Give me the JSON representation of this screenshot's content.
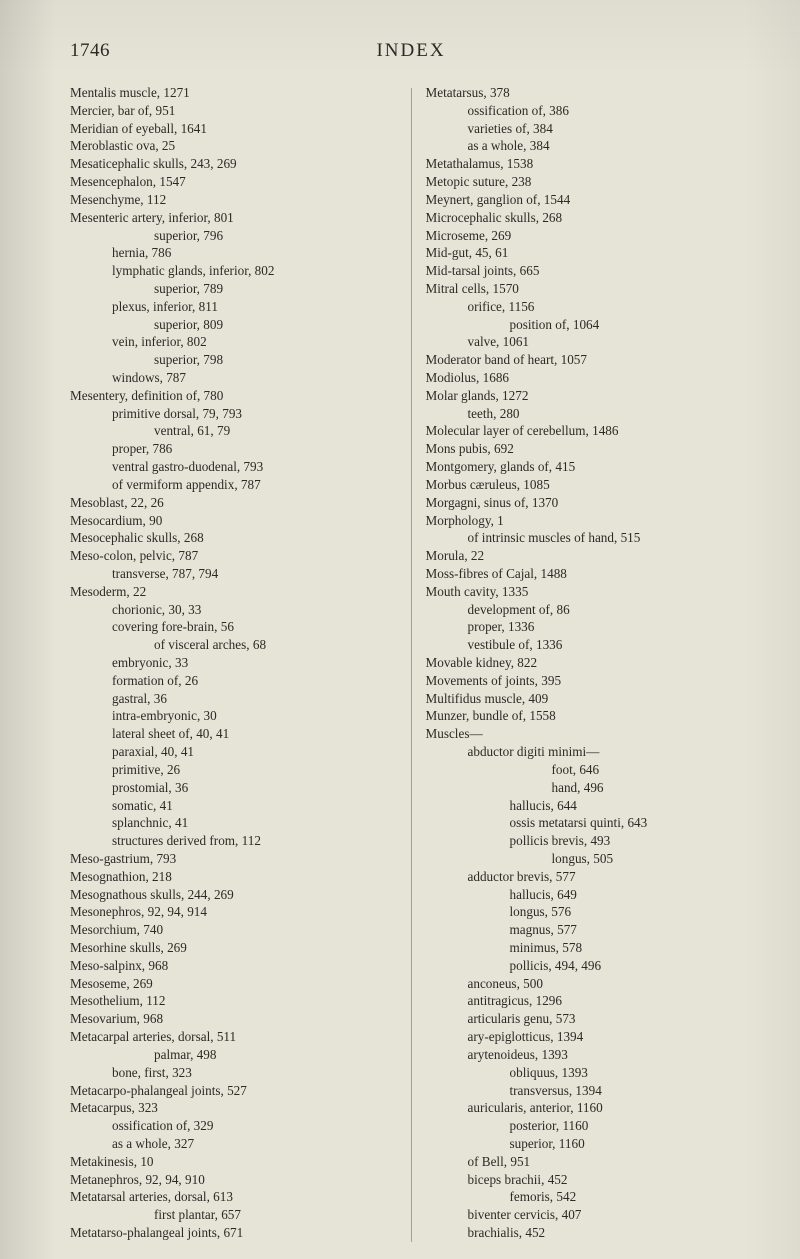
{
  "header": {
    "page_number": "1746",
    "title": "INDEX"
  },
  "columns": {
    "left": [
      {
        "t": "Mentalis muscle, 1271",
        "i": 0
      },
      {
        "t": "Mercier, bar of, 951",
        "i": 0
      },
      {
        "t": "Meridian of eyeball, 1641",
        "i": 0
      },
      {
        "t": "Meroblastic ova, 25",
        "i": 0
      },
      {
        "t": "Mesaticephalic skulls, 243, 269",
        "i": 0
      },
      {
        "t": "Mesencephalon, 1547",
        "i": 0
      },
      {
        "t": "Mesenchyme, 112",
        "i": 0
      },
      {
        "t": "Mesenteric artery, inferior, 801",
        "i": 0
      },
      {
        "t": "superior, 796",
        "i": 2
      },
      {
        "t": "hernia, 786",
        "i": 1
      },
      {
        "t": "lymphatic glands, inferior, 802",
        "i": 1
      },
      {
        "t": "superior, 789",
        "i": 2
      },
      {
        "t": "plexus, inferior, 811",
        "i": 1
      },
      {
        "t": "superior, 809",
        "i": 2
      },
      {
        "t": "vein, inferior, 802",
        "i": 1
      },
      {
        "t": "superior, 798",
        "i": 2
      },
      {
        "t": "windows, 787",
        "i": 1
      },
      {
        "t": "Mesentery, definition of, 780",
        "i": 0
      },
      {
        "t": "primitive dorsal, 79, 793",
        "i": 1
      },
      {
        "t": "ventral, 61, 79",
        "i": 2
      },
      {
        "t": "proper, 786",
        "i": 1
      },
      {
        "t": "ventral gastro-duodenal, 793",
        "i": 1
      },
      {
        "t": "of vermiform appendix, 787",
        "i": 1
      },
      {
        "t": "Mesoblast, 22, 26",
        "i": 0
      },
      {
        "t": "Mesocardium, 90",
        "i": 0
      },
      {
        "t": "Mesocephalic skulls, 268",
        "i": 0
      },
      {
        "t": "Meso-colon, pelvic, 787",
        "i": 0
      },
      {
        "t": "transverse, 787, 794",
        "i": 1
      },
      {
        "t": "Mesoderm, 22",
        "i": 0
      },
      {
        "t": "chorionic, 30, 33",
        "i": 1
      },
      {
        "t": "covering fore-brain, 56",
        "i": 1
      },
      {
        "t": "of visceral arches, 68",
        "i": 2
      },
      {
        "t": "embryonic, 33",
        "i": 1
      },
      {
        "t": "formation of, 26",
        "i": 1
      },
      {
        "t": "gastral, 36",
        "i": 1
      },
      {
        "t": "intra-embryonic, 30",
        "i": 1
      },
      {
        "t": "lateral sheet of, 40, 41",
        "i": 1
      },
      {
        "t": "paraxial, 40, 41",
        "i": 1
      },
      {
        "t": "primitive, 26",
        "i": 1
      },
      {
        "t": "prostomial, 36",
        "i": 1
      },
      {
        "t": "somatic, 41",
        "i": 1
      },
      {
        "t": "splanchnic, 41",
        "i": 1
      },
      {
        "t": "structures derived from, 112",
        "i": 1
      },
      {
        "t": "Meso-gastrium, 793",
        "i": 0
      },
      {
        "t": "Mesognathion, 218",
        "i": 0
      },
      {
        "t": "Mesognathous skulls, 244, 269",
        "i": 0
      },
      {
        "t": "Mesonephros, 92, 94, 914",
        "i": 0
      },
      {
        "t": "Mesorchium, 740",
        "i": 0
      },
      {
        "t": "Mesorhine skulls, 269",
        "i": 0
      },
      {
        "t": "Meso-salpinx, 968",
        "i": 0
      },
      {
        "t": "Mesoseme, 269",
        "i": 0
      },
      {
        "t": "Mesothelium, 112",
        "i": 0
      },
      {
        "t": "Mesovarium, 968",
        "i": 0
      },
      {
        "t": "Metacarpal arteries, dorsal, 511",
        "i": 0
      },
      {
        "t": "palmar, 498",
        "i": 2
      },
      {
        "t": "bone, first, 323",
        "i": 1
      },
      {
        "t": "Metacarpo-phalangeal joints, 527",
        "i": 0
      },
      {
        "t": "Metacarpus, 323",
        "i": 0
      },
      {
        "t": "ossification of, 329",
        "i": 1
      },
      {
        "t": "as a whole, 327",
        "i": 1
      },
      {
        "t": "Metakinesis, 10",
        "i": 0
      },
      {
        "t": "Metanephros, 92, 94, 910",
        "i": 0
      },
      {
        "t": "Metatarsal arteries, dorsal, 613",
        "i": 0
      },
      {
        "t": "first plantar, 657",
        "i": 2
      },
      {
        "t": "Metatarso-phalangeal joints, 671",
        "i": 0
      }
    ],
    "right": [
      {
        "t": "Metatarsus, 378",
        "i": 0
      },
      {
        "t": "ossification of, 386",
        "i": 1
      },
      {
        "t": "varieties of, 384",
        "i": 1
      },
      {
        "t": "as a whole, 384",
        "i": 1
      },
      {
        "t": "Metathalamus, 1538",
        "i": 0
      },
      {
        "t": "Metopic suture, 238",
        "i": 0
      },
      {
        "t": "Meynert, ganglion of, 1544",
        "i": 0
      },
      {
        "t": "Microcephalic skulls, 268",
        "i": 0
      },
      {
        "t": "Microseme, 269",
        "i": 0
      },
      {
        "t": "Mid-gut, 45, 61",
        "i": 0
      },
      {
        "t": "Mid-tarsal joints, 665",
        "i": 0
      },
      {
        "t": "Mitral cells, 1570",
        "i": 0
      },
      {
        "t": "orifice, 1156",
        "i": 1
      },
      {
        "t": "position of, 1064",
        "i": 2
      },
      {
        "t": "valve, 1061",
        "i": 1
      },
      {
        "t": "Moderator band of heart, 1057",
        "i": 0
      },
      {
        "t": "Modiolus, 1686",
        "i": 0
      },
      {
        "t": "Molar glands, 1272",
        "i": 0
      },
      {
        "t": "teeth, 280",
        "i": 1
      },
      {
        "t": "Molecular layer of cerebellum, 1486",
        "i": 0
      },
      {
        "t": "Mons pubis, 692",
        "i": 0
      },
      {
        "t": "Montgomery, glands of, 415",
        "i": 0
      },
      {
        "t": "Morbus cæruleus, 1085",
        "i": 0
      },
      {
        "t": "Morgagni, sinus of, 1370",
        "i": 0
      },
      {
        "t": "Morphology, 1",
        "i": 0
      },
      {
        "t": "of intrinsic muscles of hand, 515",
        "i": 1
      },
      {
        "t": "Morula, 22",
        "i": 0
      },
      {
        "t": "Moss-fibres of Cajal, 1488",
        "i": 0
      },
      {
        "t": "Mouth cavity, 1335",
        "i": 0
      },
      {
        "t": "development of, 86",
        "i": 1
      },
      {
        "t": "proper, 1336",
        "i": 1
      },
      {
        "t": "vestibule of, 1336",
        "i": 1
      },
      {
        "t": "Movable kidney, 822",
        "i": 0
      },
      {
        "t": "Movements of joints, 395",
        "i": 0
      },
      {
        "t": "Multifidus muscle, 409",
        "i": 0
      },
      {
        "t": "Munzer, bundle of, 1558",
        "i": 0
      },
      {
        "t": "Muscles—",
        "i": 0
      },
      {
        "t": "abductor digiti minimi—",
        "i": 1
      },
      {
        "t": "foot, 646",
        "i": 3
      },
      {
        "t": "hand, 496",
        "i": 3
      },
      {
        "t": "hallucis, 644",
        "i": 2
      },
      {
        "t": "ossis metatarsi quinti, 643",
        "i": 2
      },
      {
        "t": "pollicis brevis, 493",
        "i": 2
      },
      {
        "t": "longus, 505",
        "i": 3
      },
      {
        "t": "adductor brevis, 577",
        "i": 1
      },
      {
        "t": "hallucis, 649",
        "i": 2
      },
      {
        "t": "longus, 576",
        "i": 2
      },
      {
        "t": "magnus, 577",
        "i": 2
      },
      {
        "t": "minimus, 578",
        "i": 2
      },
      {
        "t": "pollicis, 494, 496",
        "i": 2
      },
      {
        "t": "anconeus, 500",
        "i": 1
      },
      {
        "t": "antitragicus, 1296",
        "i": 1
      },
      {
        "t": "articularis genu, 573",
        "i": 1
      },
      {
        "t": "ary-epiglotticus, 1394",
        "i": 1
      },
      {
        "t": "arytenoideus, 1393",
        "i": 1
      },
      {
        "t": "obliquus, 1393",
        "i": 2
      },
      {
        "t": "transversus, 1394",
        "i": 2
      },
      {
        "t": "auricularis, anterior, 1160",
        "i": 1
      },
      {
        "t": "posterior, 1160",
        "i": 2
      },
      {
        "t": "superior, 1160",
        "i": 2
      },
      {
        "t": "of Bell, 951",
        "i": 1
      },
      {
        "t": "biceps brachii, 452",
        "i": 1
      },
      {
        "t": "femoris, 542",
        "i": 2
      },
      {
        "t": "biventer cervicis, 407",
        "i": 1
      },
      {
        "t": "brachialis, 452",
        "i": 1
      }
    ]
  }
}
